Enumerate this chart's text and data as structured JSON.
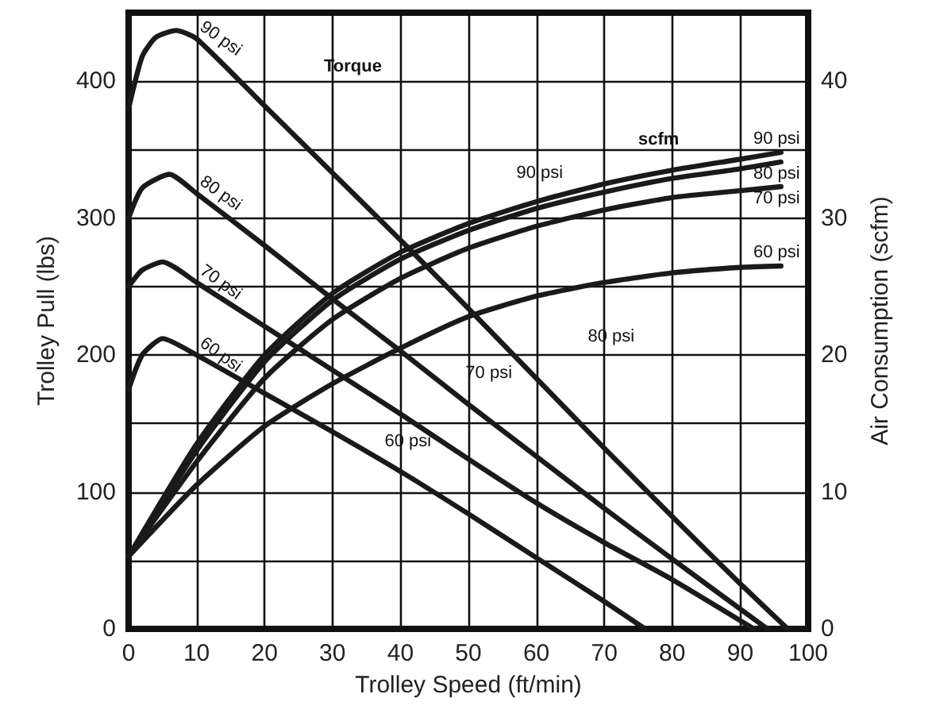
{
  "chart_data": {
    "type": "line",
    "xlabel": "Trolley Speed (ft/min)",
    "ylabel": "Trolley Pull (lbs)",
    "y2label": "Air Consumption (scfm)",
    "series": [
      {
        "name": "90 psi",
        "color": "#1a1a1a",
        "x": [
          0,
          2,
          4,
          7,
          10,
          20,
          30,
          40,
          50,
          60,
          70,
          80,
          90,
          97
        ],
        "values": [
          380,
          418,
          432,
          437,
          431,
          382,
          333,
          284,
          234,
          183,
          132,
          82,
          33,
          0
        ]
      },
      {
        "name": "80 psi",
        "color": "#1a1a1a",
        "x": [
          0,
          2,
          6,
          10,
          20,
          30,
          40,
          50,
          60,
          70,
          80,
          94
        ],
        "values": [
          300,
          322,
          332,
          318,
          280,
          241,
          203,
          164,
          126,
          88,
          51,
          0
        ]
      },
      {
        "name": "70 psi",
        "color": "#1a1a1a",
        "x": [
          0,
          2,
          5,
          10,
          20,
          30,
          40,
          50,
          60,
          70,
          80,
          92
        ],
        "values": [
          250,
          262,
          268,
          253,
          221,
          189,
          157,
          124,
          92,
          63,
          36,
          0
        ]
      },
      {
        "name": "60 psi",
        "color": "#1a1a1a",
        "x": [
          0,
          2,
          5,
          10,
          20,
          30,
          40,
          50,
          60,
          70,
          76
        ],
        "values": [
          175,
          200,
          212,
          200,
          172,
          144,
          115,
          84,
          52,
          20,
          0
        ]
      },
      {
        "name": "90 psi",
        "color": "#1a1a1a",
        "axis": "y2",
        "x": [
          0,
          10,
          20,
          30,
          40,
          50,
          60,
          70,
          80,
          90,
          96
        ],
        "values": [
          5.3,
          13.5,
          20,
          24.5,
          27.5,
          29.6,
          31.2,
          32.5,
          33.5,
          34.3,
          34.8
        ]
      },
      {
        "name": "80 psi",
        "color": "#1a1a1a",
        "axis": "y2",
        "x": [
          0,
          10,
          20,
          30,
          40,
          50,
          60,
          70,
          80,
          90,
          96
        ],
        "values": [
          5.3,
          13,
          19.5,
          24,
          27,
          29.1,
          30.7,
          31.9,
          32.9,
          33.6,
          34.1
        ]
      },
      {
        "name": "70 psi",
        "color": "#1a1a1a",
        "axis": "y2",
        "x": [
          0,
          10,
          20,
          30,
          40,
          50,
          60,
          70,
          80,
          90,
          96
        ],
        "values": [
          5.3,
          12.2,
          18.3,
          22.6,
          25.6,
          27.8,
          29.4,
          30.6,
          31.5,
          32,
          32.3
        ]
      },
      {
        "name": "60 psi",
        "color": "#1a1a1a",
        "axis": "y2",
        "x": [
          0,
          10,
          20,
          30,
          40,
          50,
          60,
          70,
          80,
          90,
          96
        ],
        "values": [
          5.3,
          10.5,
          14.8,
          17.9,
          20.5,
          22.8,
          24.3,
          25.3,
          26,
          26.4,
          26.5
        ]
      }
    ],
    "xlim": [
      0,
      100
    ],
    "xticks": [
      0,
      10,
      20,
      30,
      40,
      50,
      60,
      70,
      80,
      90,
      100
    ],
    "ylim": [
      0,
      450
    ],
    "yticks": [
      0,
      {
        "value": 50,
        "label": null
      },
      100,
      {
        "value": 150,
        "label": null
      },
      200,
      {
        "value": 250,
        "label": null
      },
      300,
      {
        "value": 350,
        "label": null
      },
      400
    ],
    "y2lim": [
      0,
      45
    ],
    "y2ticks": [
      0,
      10,
      20,
      30,
      40
    ],
    "annotations": [
      "Torque",
      "scfm",
      "90 psi",
      "80 psi",
      "70 psi",
      "60 psi"
    ],
    "grid": true,
    "legend": false,
    "marker": "none",
    "line_style": "solid"
  }
}
